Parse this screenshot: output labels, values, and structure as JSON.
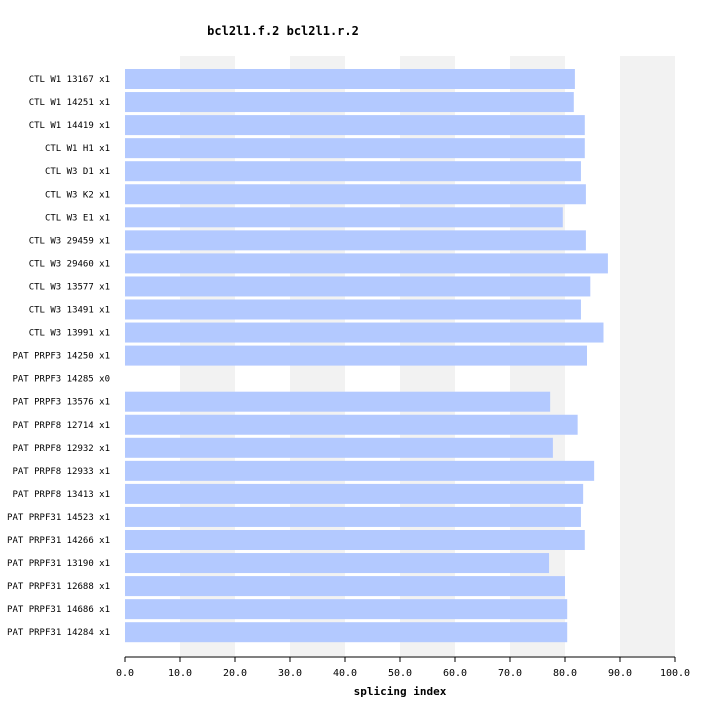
{
  "chart_data": {
    "type": "bar",
    "orientation": "horizontal",
    "title": "bcl2l1.f.2  bcl2l1.r.2",
    "xlabel": "splicing index",
    "ylabel": "",
    "xlim": [
      0,
      100
    ],
    "ticks": [
      "0.0",
      "10.0",
      "20.0",
      "30.0",
      "40.0",
      "50.0",
      "60.0",
      "70.0",
      "80.0",
      "90.0",
      "100.0"
    ],
    "grid": "alternating vertical bands",
    "colors": {
      "bar": "#b3c9ff",
      "band": "#f2f2f2",
      "axis": "#000000"
    },
    "categories": [
      "CTL W1 13167 x1",
      "CTL W1 14251 x1",
      "CTL W1 14419 x1",
      "CTL W1 H1 x1",
      "CTL W3 D1 x1",
      "CTL W3 K2 x1",
      "CTL W3 E1 x1",
      "CTL W3 29459 x1",
      "CTL W3 29460 x1",
      "CTL W3 13577 x1",
      "CTL W3 13491 x1",
      "CTL W3 13991 x1",
      "PAT PRPF3 14250 x1",
      "PAT PRPF3 14285 x0",
      "PAT PRPF3 13576 x1",
      "PAT PRPF8 12714 x1",
      "PAT PRPF8 12932 x1",
      "PAT PRPF8 12933 x1",
      "PAT PRPF8 13413 x1",
      "PAT PRPF31 14523 x1",
      "PAT PRPF31 14266 x1",
      "PAT PRPF31 13190 x1",
      "PAT PRPF31 12688 x1",
      "PAT PRPF31 14686 x1",
      "PAT PRPF31 14284 x1"
    ],
    "values": [
      81.8,
      81.6,
      83.6,
      83.6,
      82.9,
      83.8,
      79.6,
      83.8,
      87.8,
      84.6,
      82.9,
      87.0,
      84.0,
      null,
      77.3,
      82.3,
      77.8,
      85.3,
      83.3,
      82.9,
      83.6,
      77.1,
      80.0,
      80.4,
      80.4
    ]
  }
}
